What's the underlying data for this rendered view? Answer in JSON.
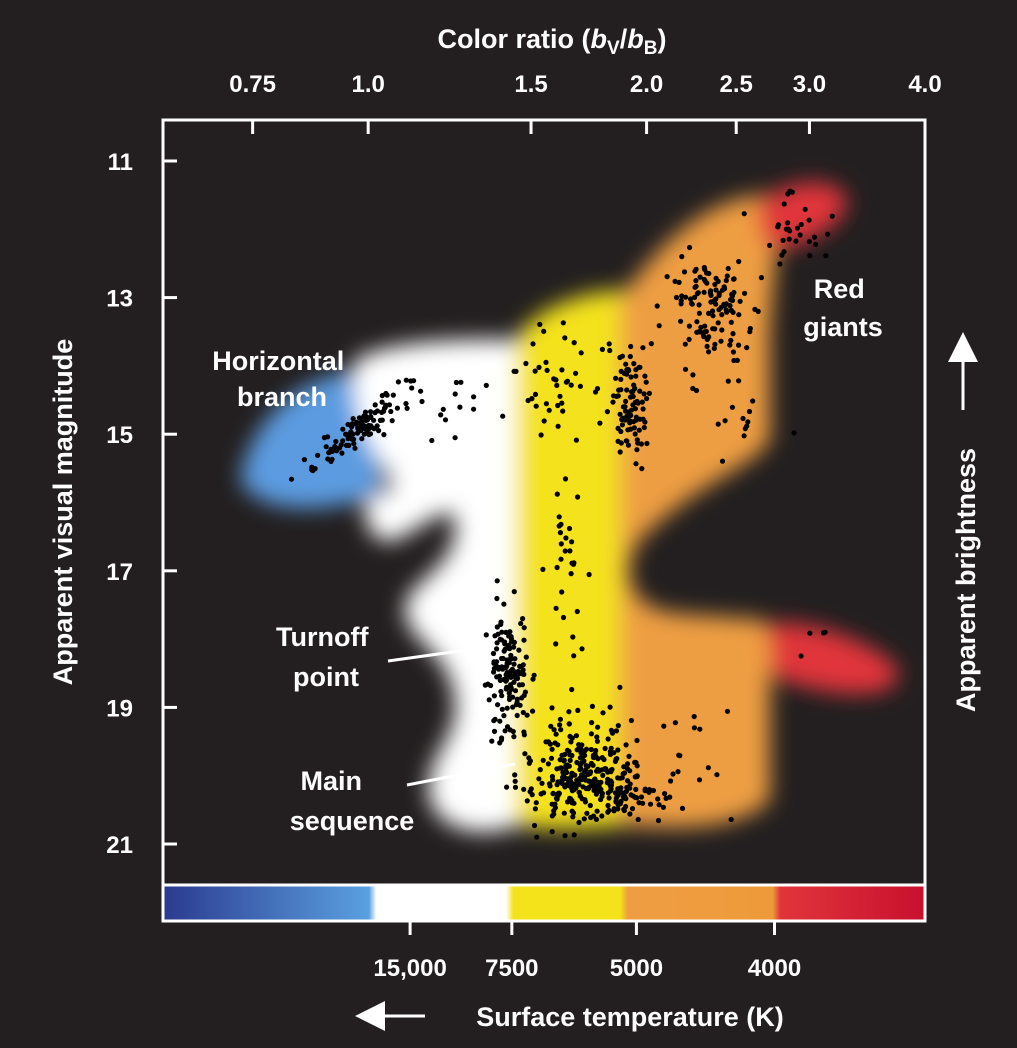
{
  "chart_data": {
    "type": "scatter",
    "title": "",
    "top_axis": {
      "label": "Color ratio (bV/bB)",
      "label_parts": [
        "Color ratio (",
        "b",
        "V",
        "/",
        "b",
        "B",
        ")"
      ],
      "ticks": [
        {
          "value": 0.75,
          "label": "0.75"
        },
        {
          "value": 1.0,
          "label": "1.0"
        },
        {
          "value": 1.5,
          "label": "1.5"
        },
        {
          "value": 2.0,
          "label": "2.0"
        },
        {
          "value": 2.5,
          "label": "2.5"
        },
        {
          "value": 3.0,
          "label": "3.0"
        },
        {
          "value": 4.0,
          "label": "4.0"
        }
      ],
      "range": [
        0.6,
        4.0
      ],
      "scale": "log"
    },
    "y_axis": {
      "label": "Apparent visual magnitude",
      "ticks": [
        11,
        13,
        15,
        17,
        19,
        21
      ],
      "range": [
        10.4,
        21.6
      ],
      "inverted": true
    },
    "right_axis": {
      "label": "Apparent brightness",
      "arrow": "up"
    },
    "bottom_axis": {
      "label": "Surface temperature (K)",
      "arrow": "left",
      "ticks": [
        {
          "value": 15000,
          "label": "15,000"
        },
        {
          "value": 7500,
          "label": "7500"
        },
        {
          "value": 5000,
          "label": "5000"
        },
        {
          "value": 4000,
          "label": "4000"
        }
      ]
    },
    "color_bar": {
      "stops": [
        "#2b3a8f",
        "#5aa0e0",
        "#ffffff",
        "#ffffff",
        "#f4e21a",
        "#f0a040",
        "#ee9a3a",
        "#e0353b",
        "#c8102e"
      ]
    },
    "annotations": [
      {
        "label": "Horizontal branch",
        "lines": [
          "Horizontal",
          "branch"
        ]
      },
      {
        "label": "Red giants",
        "lines": [
          "Red",
          "giants"
        ]
      },
      {
        "label": "Turnoff point",
        "lines": [
          "Turnoff",
          "point"
        ]
      },
      {
        "label": "Main sequence",
        "lines": [
          "Main",
          "sequence"
        ]
      }
    ],
    "regions": {
      "blue": "#5b9be0",
      "white": "#ffffff",
      "yellow": "#f4e21a",
      "orange": "#ee9e42",
      "red": "#e0353b"
    },
    "clusters": [
      {
        "name": "horizontal-branch",
        "center": [
          0.98,
          14.9
        ],
        "spread": [
          0.06,
          0.35
        ],
        "slope": [
          0.8,
          -1.4
        ],
        "n": 110
      },
      {
        "name": "hb-gap",
        "center": [
          1.25,
          14.6
        ],
        "spread": [
          0.08,
          0.25
        ],
        "n": 14
      },
      {
        "name": "subgiant-branch",
        "center": [
          1.65,
          14.3
        ],
        "spread": [
          0.12,
          0.45
        ],
        "n": 45
      },
      {
        "name": "lower-rgb",
        "center": [
          1.92,
          14.6
        ],
        "spread": [
          0.04,
          0.45
        ],
        "n": 90
      },
      {
        "name": "upper-rgb",
        "center": [
          2.35,
          13.1
        ],
        "spread": [
          0.12,
          0.35
        ],
        "n": 120
      },
      {
        "name": "rgb-tip",
        "center": [
          2.85,
          12.1
        ],
        "spread": [
          0.12,
          0.25
        ],
        "n": 30
      },
      {
        "name": "giant-scatter",
        "center": [
          2.45,
          14.4
        ],
        "spread": [
          0.15,
          0.6
        ],
        "n": 20
      },
      {
        "name": "subgiants",
        "center": [
          1.63,
          16.8
        ],
        "spread": [
          0.04,
          0.8
        ],
        "n": 30
      },
      {
        "name": "turnoff",
        "center": [
          1.42,
          18.5
        ],
        "spread": [
          0.035,
          0.45
        ],
        "n": 140
      },
      {
        "name": "main-sequence",
        "center": [
          1.7,
          19.9
        ],
        "spread": [
          0.12,
          0.35
        ],
        "n": 260
      },
      {
        "name": "ms-faint",
        "center": [
          1.85,
          20.3
        ],
        "spread": [
          0.16,
          0.2
        ],
        "n": 90
      },
      {
        "name": "stragglers",
        "center": [
          2.2,
          19.6
        ],
        "spread": [
          0.2,
          0.6
        ],
        "n": 14
      },
      {
        "name": "red-clump",
        "center": [
          3.2,
          18.1
        ],
        "spread": [
          0.25,
          0.2
        ],
        "n": 4
      }
    ]
  }
}
